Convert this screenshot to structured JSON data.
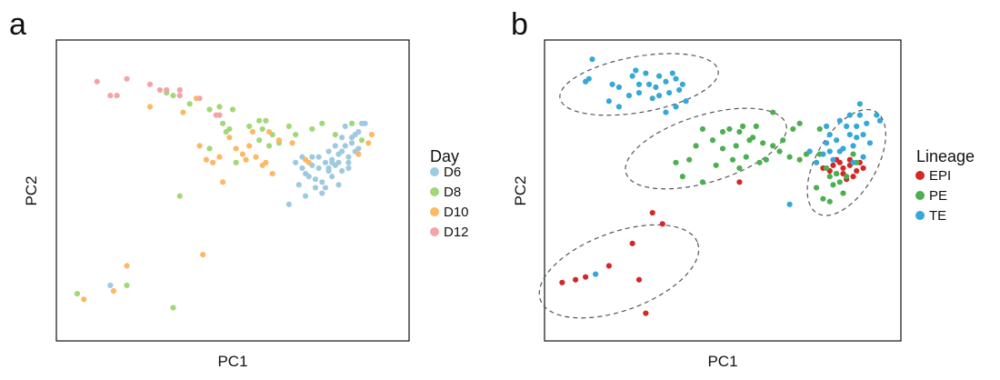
{
  "chart_data": [
    {
      "panel": "a",
      "type": "scatter",
      "xlabel": "PC1",
      "ylabel": "PC2",
      "xlim": [
        0,
        100
      ],
      "ylim": [
        0,
        100
      ],
      "grid": false,
      "legend": {
        "title": "Day",
        "placement": "right"
      },
      "series": [
        {
          "name": "D6",
          "color": "#9ecae1",
          "points": [
            [
              13,
              16
            ],
            [
              67,
              45
            ],
            [
              71,
              58
            ],
            [
              72,
              56
            ],
            [
              73,
              55
            ],
            [
              74,
              62
            ],
            [
              75,
              54
            ],
            [
              76,
              58
            ],
            [
              77,
              53
            ],
            [
              78,
              60
            ],
            [
              79,
              57
            ],
            [
              80,
              61
            ],
            [
              80,
              55
            ],
            [
              81,
              59
            ],
            [
              82,
              63
            ],
            [
              83,
              57
            ],
            [
              84,
              66
            ],
            [
              85,
              60
            ],
            [
              83,
              69
            ],
            [
              86,
              67
            ],
            [
              87,
              64
            ],
            [
              85,
              62
            ],
            [
              88,
              71
            ],
            [
              84,
              73
            ],
            [
              86,
              74
            ],
            [
              89,
              74
            ],
            [
              90,
              74
            ],
            [
              81,
              66
            ],
            [
              79,
              64
            ],
            [
              82,
              52
            ],
            [
              78,
              51
            ],
            [
              77,
              49
            ],
            [
              85,
              58
            ],
            [
              87,
              70
            ],
            [
              83,
              64
            ],
            [
              80,
              60
            ],
            [
              76,
              62
            ],
            [
              74,
              59
            ],
            [
              70,
              52
            ],
            [
              71,
              62
            ],
            [
              69,
              60
            ],
            [
              72,
              48
            ],
            [
              88,
              65
            ],
            [
              86,
              69
            ],
            [
              82,
              60
            ],
            [
              79,
              58
            ],
            [
              75,
              51
            ]
          ]
        },
        {
          "name": "D8",
          "color": "#a1d878",
          "points": [
            [
              3,
              13
            ],
            [
              18,
              16
            ],
            [
              32,
              8
            ],
            [
              34,
              48
            ],
            [
              30,
              85
            ],
            [
              32,
              84
            ],
            [
              37,
              81
            ],
            [
              43,
              79
            ],
            [
              46,
              80
            ],
            [
              50,
              79
            ],
            [
              47,
              74
            ],
            [
              48,
              71
            ],
            [
              55,
              73
            ],
            [
              58,
              75
            ],
            [
              59,
              72
            ],
            [
              60,
              75
            ],
            [
              61,
              66
            ],
            [
              64,
              67
            ],
            [
              67,
              73
            ],
            [
              69,
              70
            ],
            [
              74,
              72
            ],
            [
              77,
              74
            ],
            [
              81,
              70
            ],
            [
              86,
              74
            ],
            [
              89,
              68
            ],
            [
              43,
              65
            ],
            [
              49,
              72
            ],
            [
              51,
              60
            ],
            [
              58,
              68
            ],
            [
              62,
              70
            ]
          ]
        },
        {
          "name": "D10",
          "color": "#fdb863",
          "points": [
            [
              5,
              11
            ],
            [
              14,
              14
            ],
            [
              18,
              23
            ],
            [
              41,
              27
            ],
            [
              25,
              80
            ],
            [
              35,
              78
            ],
            [
              39,
              83
            ],
            [
              40,
              66
            ],
            [
              42,
              61
            ],
            [
              44,
              60
            ],
            [
              47,
              53
            ],
            [
              49,
              69
            ],
            [
              51,
              65
            ],
            [
              53,
              63
            ],
            [
              55,
              66
            ],
            [
              57,
              62
            ],
            [
              59,
              59
            ],
            [
              60,
              60
            ],
            [
              61,
              71
            ],
            [
              62,
              56
            ],
            [
              64,
              68
            ],
            [
              68,
              67
            ],
            [
              72,
              61
            ],
            [
              73,
              60
            ],
            [
              88,
              63
            ],
            [
              91,
              67
            ],
            [
              92,
              70
            ],
            [
              54,
              61
            ],
            [
              46,
              62
            ],
            [
              56,
              71
            ]
          ]
        },
        {
          "name": "D12",
          "color": "#f4a3a8",
          "points": [
            [
              9,
              89
            ],
            [
              13,
              84
            ],
            [
              15,
              84
            ],
            [
              18,
              90
            ],
            [
              25,
              88
            ],
            [
              28,
              86
            ],
            [
              30,
              86
            ],
            [
              34,
              86
            ],
            [
              40,
              83
            ],
            [
              46,
              77
            ],
            [
              45,
              77
            ],
            [
              34,
              84
            ]
          ]
        }
      ]
    },
    {
      "panel": "b",
      "type": "scatter",
      "xlabel": "PC1",
      "ylabel": "PC2",
      "xlim": [
        0,
        100
      ],
      "ylim": [
        0,
        100
      ],
      "grid": false,
      "legend": {
        "title": "Lineage",
        "placement": "right"
      },
      "clusters": [
        {
          "center": [
            25,
            88
          ],
          "radii": [
            24,
            10
          ],
          "angle_deg": -10
        },
        {
          "center": [
            45,
            65
          ],
          "radii": [
            25,
            12
          ],
          "angle_deg": -17
        },
        {
          "center": [
            87,
            60
          ],
          "radii": [
            9,
            21
          ],
          "angle_deg": 30
        },
        {
          "center": [
            19,
            21
          ],
          "radii": [
            25,
            14
          ],
          "angle_deg": -20
        }
      ],
      "series": [
        {
          "name": "EPI",
          "color": "#d62728",
          "points": [
            [
              2,
              17
            ],
            [
              6,
              18
            ],
            [
              16,
              23
            ],
            [
              23,
              31
            ],
            [
              25,
              18
            ],
            [
              27,
              6
            ],
            [
              32,
              38
            ],
            [
              55,
              53
            ],
            [
              29,
              42
            ],
            [
              9,
              19
            ],
            [
              80,
              58
            ],
            [
              82,
              57
            ],
            [
              84,
              56
            ],
            [
              85,
              60
            ],
            [
              86,
              58
            ],
            [
              87,
              54
            ],
            [
              88,
              59
            ],
            [
              88,
              61
            ],
            [
              90,
              57
            ],
            [
              91,
              60
            ],
            [
              89,
              55
            ],
            [
              84,
              61
            ],
            [
              86,
              56
            ],
            [
              83,
              59
            ],
            [
              92,
              58
            ]
          ]
        },
        {
          "name": "PE",
          "color": "#4caf50",
          "points": [
            [
              36,
              60
            ],
            [
              38,
              55
            ],
            [
              44,
              53
            ],
            [
              40,
              61
            ],
            [
              42,
              66
            ],
            [
              44,
              72
            ],
            [
              47,
              68
            ],
            [
              50,
              65
            ],
            [
              52,
              72
            ],
            [
              53,
              61
            ],
            [
              54,
              66
            ],
            [
              55,
              71
            ],
            [
              56,
              73
            ],
            [
              57,
              62
            ],
            [
              58,
              68
            ],
            [
              60,
              73
            ],
            [
              61,
              60
            ],
            [
              62,
              67
            ],
            [
              63,
              61
            ],
            [
              65,
              66
            ],
            [
              68,
              68
            ],
            [
              70,
              62
            ],
            [
              71,
              72
            ],
            [
              73,
              61
            ],
            [
              73,
              74
            ],
            [
              79,
              63
            ],
            [
              79,
              72
            ],
            [
              78,
              51
            ],
            [
              80,
              47
            ],
            [
              82,
              46
            ],
            [
              83,
              52
            ],
            [
              81,
              58
            ],
            [
              84,
              56
            ],
            [
              86,
              49
            ],
            [
              87,
              55
            ],
            [
              85,
              53
            ],
            [
              90,
              60
            ],
            [
              89,
              63
            ],
            [
              82,
              55
            ],
            [
              75,
              63
            ],
            [
              65,
              78
            ],
            [
              67,
              64
            ],
            [
              59,
              69
            ],
            [
              50,
              71
            ],
            [
              55,
              58
            ],
            [
              48,
              59
            ]
          ]
        },
        {
          "name": "TE",
          "color": "#35a8d8",
          "points": [
            [
              9,
              89
            ],
            [
              10,
              90
            ],
            [
              11,
              97
            ],
            [
              16,
              82
            ],
            [
              17,
              88
            ],
            [
              19,
              87
            ],
            [
              19,
              80
            ],
            [
              22,
              84
            ],
            [
              23,
              91
            ],
            [
              24,
              93
            ],
            [
              25,
              88
            ],
            [
              25,
              85
            ],
            [
              27,
              92
            ],
            [
              28,
              88
            ],
            [
              29,
              83
            ],
            [
              30,
              87
            ],
            [
              31,
              91
            ],
            [
              31,
              84
            ],
            [
              33,
              89
            ],
            [
              34,
              85
            ],
            [
              35,
              92
            ],
            [
              36,
              90
            ],
            [
              37,
              86
            ],
            [
              38,
              88
            ],
            [
              39,
              82
            ],
            [
              36,
              80
            ],
            [
              33,
              78
            ],
            [
              70,
              45
            ],
            [
              76,
              64
            ],
            [
              78,
              60
            ],
            [
              80,
              63
            ],
            [
              81,
              67
            ],
            [
              81,
              73
            ],
            [
              82,
              70
            ],
            [
              84,
              68
            ],
            [
              85,
              75
            ],
            [
              85,
              64
            ],
            [
              87,
              73
            ],
            [
              88,
              70
            ],
            [
              88,
              77
            ],
            [
              89,
              66
            ],
            [
              90,
              69
            ],
            [
              90,
              73
            ],
            [
              91,
              77
            ],
            [
              92,
              70
            ],
            [
              93,
              74
            ],
            [
              96,
              77
            ],
            [
              97,
              75
            ],
            [
              91,
              81
            ],
            [
              86,
              65
            ],
            [
              83,
              61
            ],
            [
              92,
              62
            ],
            [
              94,
              67
            ],
            [
              12,
              20
            ],
            [
              82,
              64
            ],
            [
              89,
              60
            ]
          ]
        }
      ]
    }
  ]
}
